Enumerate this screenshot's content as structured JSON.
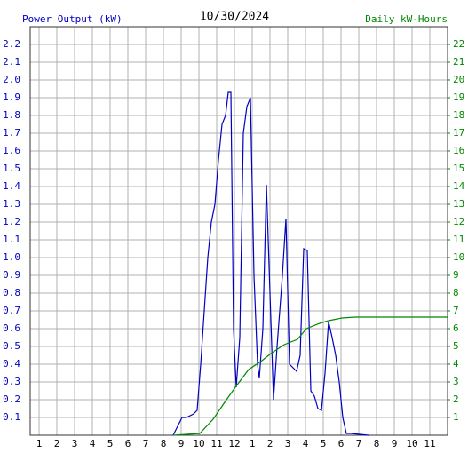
{
  "chart_data": {
    "type": "line",
    "title": "10/30/2024",
    "y_label": "Power Output (kW)",
    "y2_label": "Daily kW-Hours",
    "xlim": [
      0.5,
      24
    ],
    "xticks": [
      1,
      2,
      3,
      4,
      5,
      6,
      7,
      8,
      9,
      10,
      11,
      {
        "value": 12,
        "label": "12"
      },
      {
        "value": 13,
        "label": "1"
      },
      {
        "value": 14,
        "label": "2"
      },
      {
        "value": 15,
        "label": "3"
      },
      {
        "value": 16,
        "label": "4"
      },
      {
        "value": 17,
        "label": "5"
      },
      {
        "value": 18,
        "label": "6"
      },
      {
        "value": 19,
        "label": "7"
      },
      {
        "value": 20,
        "label": "8"
      },
      {
        "value": 21,
        "label": "9"
      },
      {
        "value": 22,
        "label": "10"
      },
      {
        "value": 23,
        "label": "11"
      }
    ],
    "ylim": [
      0,
      2.3
    ],
    "yticks": [
      0.1,
      0.2,
      0.3,
      0.4,
      0.5,
      0.6,
      0.7,
      0.8,
      0.9,
      {
        "value": 1,
        "label": "1.0"
      },
      1.1,
      1.2,
      1.3,
      1.4,
      1.5,
      1.6,
      1.7,
      1.8,
      1.9,
      {
        "value": 2,
        "label": "2.0"
      },
      2.1,
      2.2
    ],
    "y2lim": [
      0,
      23
    ],
    "y2ticks": [
      1,
      2,
      3,
      4,
      5,
      6,
      7,
      8,
      9,
      10,
      11,
      12,
      13,
      14,
      15,
      16,
      17,
      18,
      19,
      20,
      21,
      22
    ],
    "grid": true,
    "series": [
      {
        "name": "Power Output (kW)",
        "color": "#0000c0",
        "x": [
          8.55,
          8.8,
          9.05,
          9.3,
          9.7,
          9.9,
          10.1,
          10.3,
          10.5,
          10.7,
          10.9,
          11.1,
          11.3,
          11.5,
          11.65,
          11.8,
          11.95,
          12.1,
          12.3,
          12.5,
          12.7,
          12.9,
          13.1,
          13.3,
          13.4,
          13.6,
          13.8,
          14.0,
          14.2,
          14.4,
          14.7,
          14.9,
          15.1,
          15.3,
          15.5,
          15.7,
          15.9,
          16.1,
          16.3,
          16.5,
          16.7,
          16.9,
          17.1,
          17.3,
          17.5,
          17.7,
          17.9,
          18.1,
          18.3,
          18.55,
          19.55
        ],
        "values": [
          0,
          0.05,
          0.1,
          0.1,
          0.12,
          0.14,
          0.4,
          0.7,
          1.0,
          1.2,
          1.3,
          1.55,
          1.75,
          1.8,
          1.93,
          1.93,
          0.6,
          0.27,
          0.55,
          1.7,
          1.85,
          1.9,
          0.9,
          0.4,
          0.32,
          0.6,
          1.41,
          0.8,
          0.2,
          0.5,
          0.9,
          1.22,
          0.4,
          0.38,
          0.36,
          0.45,
          1.05,
          1.04,
          0.25,
          0.22,
          0.15,
          0.14,
          0.35,
          0.64,
          0.55,
          0.45,
          0.3,
          0.1,
          0.01,
          0.01,
          0
        ]
      },
      {
        "name": "Daily kW-Hours",
        "color": "#008800",
        "axis": "y2",
        "x": [
          8.55,
          10.05,
          10.8,
          11.55,
          12.05,
          12.8,
          13.55,
          14.05,
          14.8,
          15.55,
          16.05,
          16.8,
          17.3,
          18.05,
          18.8,
          24
        ],
        "values": [
          0,
          0.1,
          0.9,
          2.0,
          2.7,
          3.7,
          4.2,
          4.6,
          5.1,
          5.4,
          6.0,
          6.3,
          6.45,
          6.6,
          6.65,
          6.65
        ]
      }
    ]
  }
}
